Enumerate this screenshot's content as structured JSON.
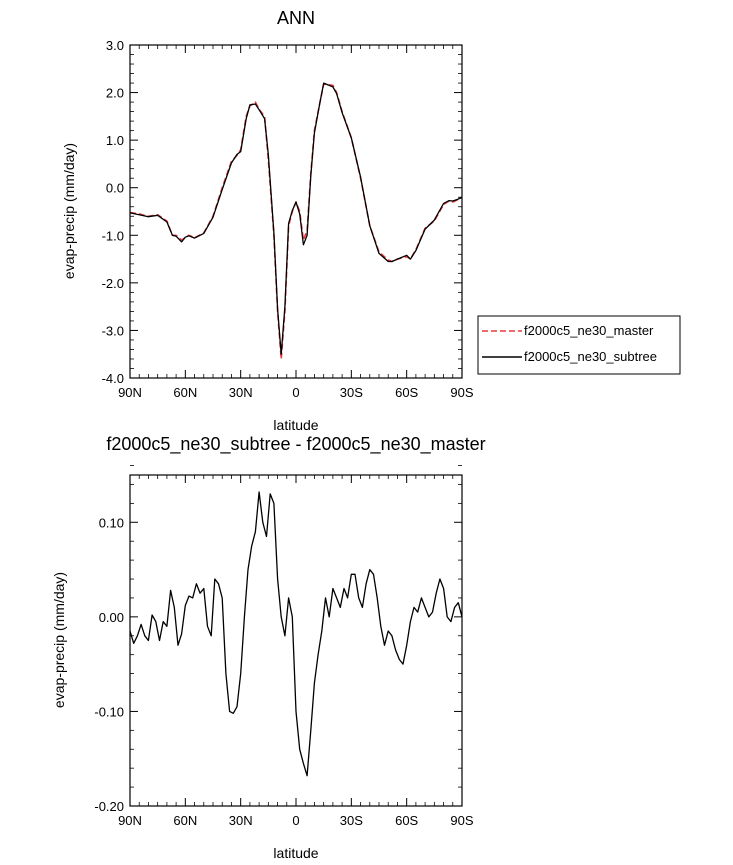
{
  "chart_data": [
    {
      "type": "line",
      "title": "ANN",
      "xlabel": "latitude",
      "ylabel": "evap-precip (mm/day)",
      "xlim": [
        90,
        -90
      ],
      "ylim": [
        -4.0,
        3.0
      ],
      "x_ticks": [
        90,
        60,
        30,
        0,
        -30,
        -60,
        -90
      ],
      "x_tick_labels": [
        "90N",
        "60N",
        "30N",
        "0",
        "30S",
        "60S",
        "90S"
      ],
      "y_ticks": [
        -4,
        -3,
        -2,
        -1,
        0,
        1,
        2,
        3
      ],
      "y_tick_labels": [
        "-4.0",
        "-3.0",
        "-2.0",
        "-1.0",
        "0.0",
        "1.0",
        "2.0",
        "3.0"
      ],
      "grid": false,
      "legend_position": "right",
      "x": [
        90,
        85,
        80,
        75,
        70,
        67,
        65,
        62,
        60,
        58,
        55,
        50,
        45,
        40,
        35,
        32,
        30,
        27,
        25,
        22,
        20,
        17,
        15,
        12,
        10,
        8,
        6,
        4,
        2,
        0,
        -2,
        -4,
        -6,
        -8,
        -10,
        -13,
        -15,
        -20,
        -22,
        -25,
        -30,
        -35,
        -40,
        -45,
        -50,
        -52,
        -55,
        -60,
        -62,
        -65,
        -70,
        -75,
        -80,
        -83,
        -85,
        -88,
        -90
      ],
      "series": [
        {
          "name": "f2000c5_ne30_master",
          "color": "#e8383d",
          "dash": "dashed",
          "values": [
            -0.52,
            -0.55,
            -0.6,
            -0.57,
            -0.7,
            -1.0,
            -1.0,
            -1.1,
            -1.05,
            -1.0,
            -1.05,
            -0.95,
            -0.6,
            0.0,
            0.55,
            0.68,
            0.8,
            1.5,
            1.72,
            1.8,
            1.65,
            1.5,
            0.6,
            -1.0,
            -2.6,
            -3.6,
            -2.6,
            -0.8,
            -0.5,
            -0.3,
            -0.5,
            -1.1,
            -0.9,
            0.3,
            1.2,
            1.8,
            2.18,
            2.15,
            2.0,
            1.6,
            1.05,
            0.2,
            -0.8,
            -1.35,
            -1.52,
            -1.55,
            -1.5,
            -1.45,
            -1.5,
            -1.3,
            -0.85,
            -0.7,
            -0.35,
            -0.28,
            -0.3,
            -0.25,
            -0.2
          ]
        },
        {
          "name": "f2000c5_ne30_subtree",
          "color": "#000000",
          "dash": "solid",
          "values": [
            -0.53,
            -0.57,
            -0.61,
            -0.58,
            -0.72,
            -1.0,
            -1.02,
            -1.14,
            -1.04,
            -1.01,
            -1.06,
            -0.96,
            -0.62,
            -0.04,
            0.52,
            0.7,
            0.76,
            1.45,
            1.74,
            1.76,
            1.64,
            1.45,
            0.7,
            -0.95,
            -2.55,
            -3.5,
            -2.5,
            -0.75,
            -0.48,
            -0.3,
            -0.55,
            -1.2,
            -1.0,
            0.25,
            1.15,
            1.8,
            2.2,
            2.12,
            1.98,
            1.58,
            1.05,
            0.22,
            -0.8,
            -1.38,
            -1.55,
            -1.55,
            -1.5,
            -1.42,
            -1.5,
            -1.32,
            -0.87,
            -0.68,
            -0.33,
            -0.27,
            -0.28,
            -0.24,
            -0.2
          ]
        }
      ]
    },
    {
      "type": "line",
      "title": "f2000c5_ne30_subtree - f2000c5_ne30_master",
      "xlabel": "latitude",
      "ylabel": "evap-precip (mm/day)",
      "xlim": [
        90,
        -90
      ],
      "ylim": [
        -0.2,
        0.15
      ],
      "x_ticks": [
        90,
        60,
        30,
        0,
        -30,
        -60,
        -90
      ],
      "x_tick_labels": [
        "90N",
        "60N",
        "30N",
        "0",
        "30S",
        "60S",
        "90S"
      ],
      "y_ticks": [
        -0.2,
        -0.1,
        0.0,
        0.1
      ],
      "y_tick_labels": [
        "-0.20",
        "-0.10",
        "0.00",
        "0.10"
      ],
      "grid": false,
      "x": [
        90,
        88,
        86,
        84,
        82,
        80,
        78,
        76,
        74,
        72,
        70,
        68,
        66,
        64,
        62,
        60,
        58,
        56,
        54,
        52,
        50,
        48,
        46,
        44,
        42,
        40,
        38,
        36,
        34,
        32,
        30,
        28,
        26,
        24,
        22,
        20,
        18,
        16,
        14,
        12,
        10,
        8,
        6,
        4,
        2,
        0,
        -2,
        -4,
        -6,
        -8,
        -10,
        -12,
        -14,
        -16,
        -18,
        -20,
        -22,
        -24,
        -26,
        -28,
        -30,
        -32,
        -34,
        -36,
        -38,
        -40,
        -42,
        -44,
        -46,
        -48,
        -50,
        -52,
        -54,
        -56,
        -58,
        -60,
        -62,
        -64,
        -66,
        -68,
        -70,
        -72,
        -74,
        -76,
        -78,
        -80,
        -82,
        -84,
        -86,
        -88,
        -90
      ],
      "series": [
        {
          "name": "",
          "color": "#000000",
          "dash": "solid",
          "values": [
            -0.015,
            -0.028,
            -0.02,
            -0.008,
            -0.02,
            -0.025,
            0.002,
            -0.005,
            -0.025,
            -0.005,
            -0.01,
            0.028,
            0.01,
            -0.03,
            -0.018,
            0.012,
            0.022,
            0.02,
            0.035,
            0.025,
            0.03,
            -0.01,
            -0.02,
            0.04,
            0.035,
            0.02,
            -0.06,
            -0.1,
            -0.102,
            -0.095,
            -0.06,
            0.0,
            0.05,
            0.075,
            0.09,
            0.132,
            0.1,
            0.085,
            0.13,
            0.12,
            0.04,
            0.0,
            -0.02,
            0.02,
            0.0,
            -0.1,
            -0.14,
            -0.155,
            -0.168,
            -0.12,
            -0.07,
            -0.04,
            -0.015,
            0.02,
            0.0,
            0.03,
            0.02,
            0.01,
            0.03,
            0.02,
            0.045,
            0.045,
            0.02,
            0.01,
            0.035,
            0.05,
            0.045,
            0.02,
            -0.01,
            -0.03,
            -0.015,
            -0.02,
            -0.035,
            -0.045,
            -0.05,
            -0.03,
            -0.005,
            0.01,
            0.005,
            0.02,
            0.01,
            0.0,
            0.005,
            0.025,
            0.04,
            0.03,
            0.0,
            -0.005,
            0.01,
            0.015,
            0.0
          ]
        }
      ]
    }
  ]
}
